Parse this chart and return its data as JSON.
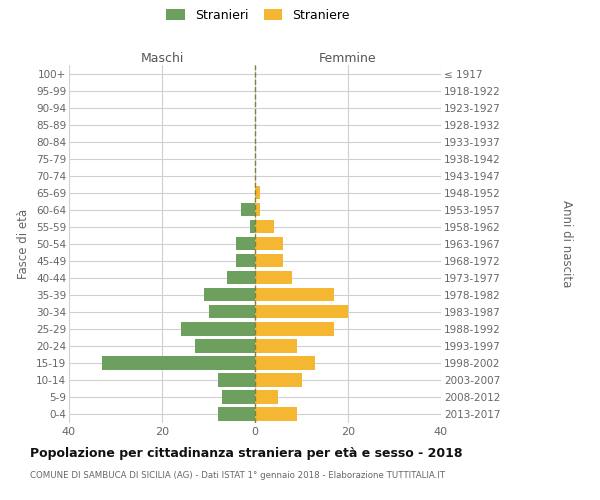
{
  "age_groups": [
    "0-4",
    "5-9",
    "10-14",
    "15-19",
    "20-24",
    "25-29",
    "30-34",
    "35-39",
    "40-44",
    "45-49",
    "50-54",
    "55-59",
    "60-64",
    "65-69",
    "70-74",
    "75-79",
    "80-84",
    "85-89",
    "90-94",
    "95-99",
    "100+"
  ],
  "birth_years": [
    "2013-2017",
    "2008-2012",
    "2003-2007",
    "1998-2002",
    "1993-1997",
    "1988-1992",
    "1983-1987",
    "1978-1982",
    "1973-1977",
    "1968-1972",
    "1963-1967",
    "1958-1962",
    "1953-1957",
    "1948-1952",
    "1943-1947",
    "1938-1942",
    "1933-1937",
    "1928-1932",
    "1923-1927",
    "1918-1922",
    "≤ 1917"
  ],
  "maschi": [
    8,
    7,
    8,
    33,
    13,
    16,
    10,
    11,
    6,
    4,
    4,
    1,
    3,
    0,
    0,
    0,
    0,
    0,
    0,
    0,
    0
  ],
  "femmine": [
    9,
    5,
    10,
    13,
    9,
    17,
    20,
    17,
    8,
    6,
    6,
    4,
    1,
    1,
    0,
    0,
    0,
    0,
    0,
    0,
    0
  ],
  "male_color": "#6d9f5e",
  "female_color": "#f5b731",
  "center_line_color": "#808040",
  "grid_color": "#d0d0d0",
  "bg_color": "#ffffff",
  "title": "Popolazione per cittadinanza straniera per età e sesso - 2018",
  "subtitle": "COMUNE DI SAMBUCA DI SICILIA (AG) - Dati ISTAT 1° gennaio 2018 - Elaborazione TUTTITALIA.IT",
  "ylabel_left": "Fasce di età",
  "ylabel_right": "Anni di nascita",
  "legend_male": "Stranieri",
  "legend_female": "Straniere",
  "xlim": 40,
  "xlabel_maschi": "Maschi",
  "xlabel_femmine": "Femmine"
}
